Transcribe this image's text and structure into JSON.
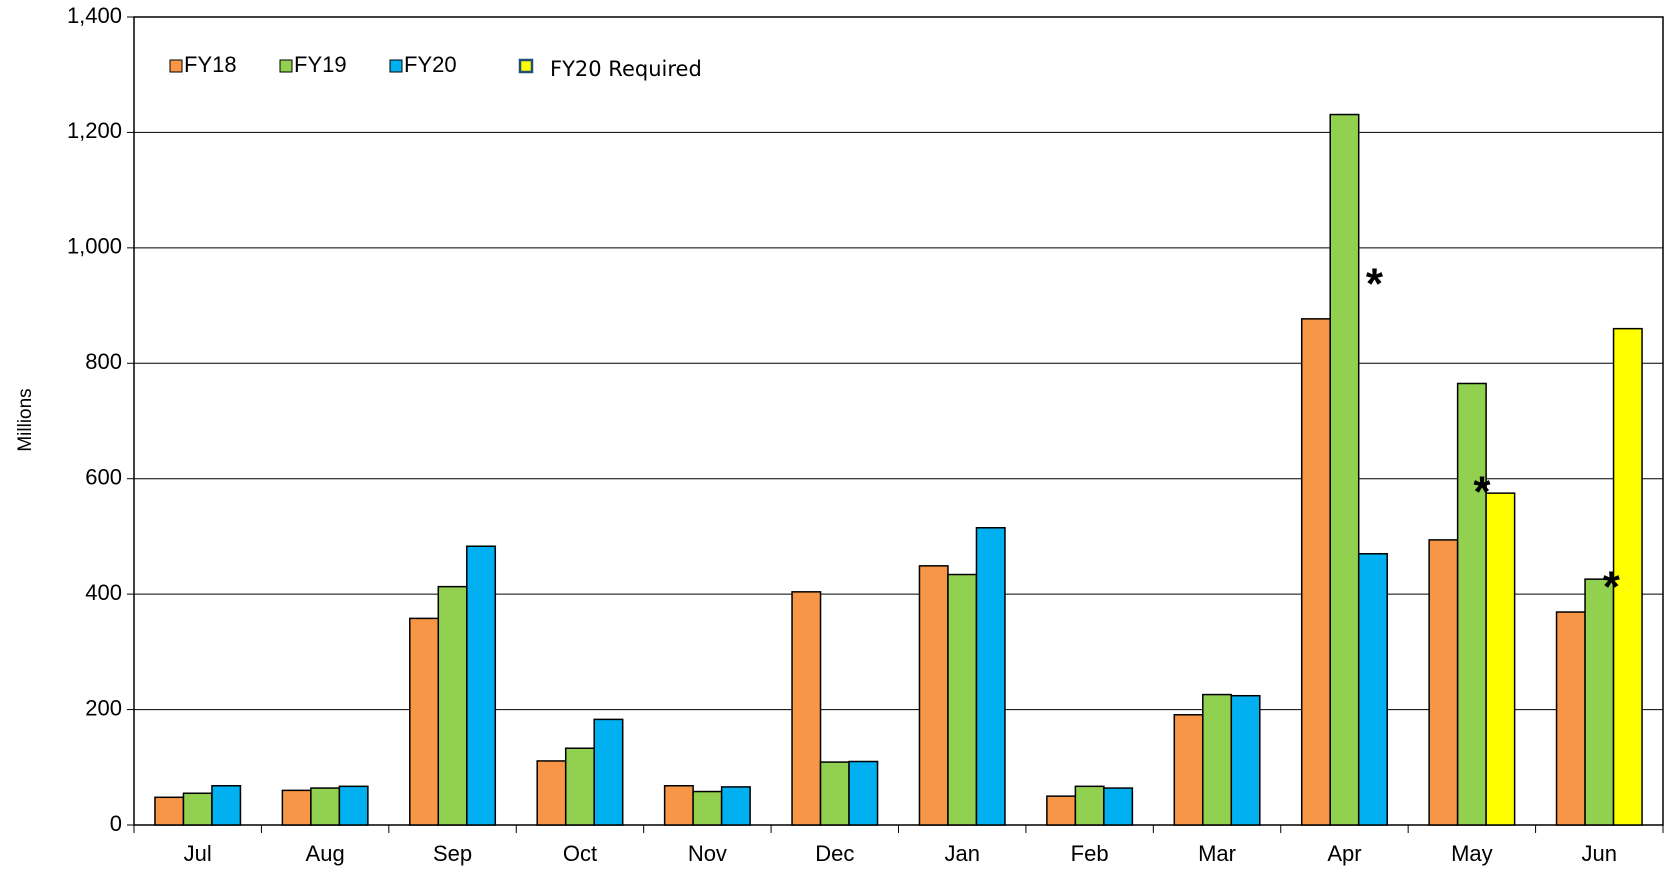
{
  "chart_data": {
    "type": "bar",
    "y_label": "Millions",
    "categories": [
      "Jul",
      "Aug",
      "Sep",
      "Oct",
      "Nov",
      "Dec",
      "Jan",
      "Feb",
      "Mar",
      "Apr",
      "May",
      "Jun"
    ],
    "series": [
      {
        "name": "FY18",
        "color": "#f79646",
        "values": [
          48,
          60,
          358,
          111,
          68,
          404,
          449,
          50,
          191,
          877,
          494,
          369
        ]
      },
      {
        "name": "FY19",
        "color": "#92d050",
        "values": [
          55,
          64,
          413,
          133,
          58,
          109,
          434,
          67,
          226,
          1231,
          765,
          426
        ]
      },
      {
        "name": "FY20",
        "color": "#00b0f0",
        "values": [
          68,
          67,
          483,
          183,
          66,
          110,
          515,
          64,
          224,
          470,
          null,
          null
        ]
      },
      {
        "name": "FY20 Required",
        "color": "#ffff00",
        "values": [
          null,
          null,
          null,
          null,
          null,
          null,
          null,
          null,
          null,
          null,
          575,
          860
        ]
      }
    ],
    "ylim": [
      0,
      1400
    ],
    "yticks": [
      0,
      200,
      400,
      600,
      800,
      {
        "value": 1000,
        "label": "1,000"
      },
      {
        "value": 1200,
        "label": "1,200"
      },
      {
        "value": 1400,
        "label": "1,400"
      }
    ],
    "grid": true,
    "annotations": [
      {
        "text": "*",
        "category": "Apr",
        "color": "#c00000"
      },
      {
        "text": "*",
        "category": "May",
        "color": "#c00000"
      },
      {
        "text": "*",
        "category": "Jun",
        "color": "#c00000"
      }
    ]
  }
}
